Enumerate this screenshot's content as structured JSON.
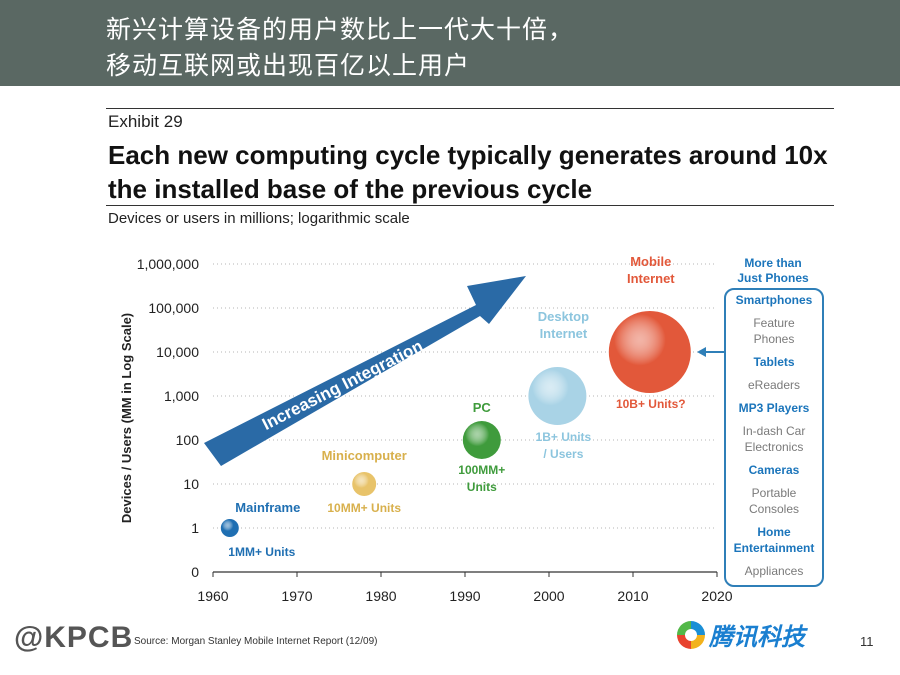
{
  "header": {
    "line1": "新兴计算设备的用户数比上一代大十倍，",
    "line2": "移动互联网或出现百亿以上用户"
  },
  "exhibit": {
    "label": "Exhibit 29",
    "title": "Each new computing cycle typically generates around 10x the installed base of the previous cycle",
    "subtitle": "Devices or users in millions; logarithmic scale"
  },
  "colors": {
    "header_bg": "#5a6863",
    "arrow": "#2a6aa6",
    "mainframe": "#1f6fb2",
    "minicomputer": "#e8c36a",
    "pc": "#3f9b3c",
    "desktop": "#a9d3e6",
    "mobile": "#e2583a",
    "side_panel": "#2f7fb8",
    "side_dark": "#1b75bb",
    "side_light": "#7a7a7a"
  },
  "chart_data": {
    "type": "scatter",
    "title": "Each new computing cycle typically generates around 10x the installed base of the previous cycle",
    "subtitle": "Devices or users in millions; logarithmic scale",
    "xlabel": "",
    "ylabel": "Devices / Users (MM in Log Scale)",
    "yscale": "log",
    "xlim": [
      1960,
      2020
    ],
    "x_ticks": [
      "1960",
      "1970",
      "1980",
      "1990",
      "2000",
      "2010",
      "2020"
    ],
    "y_ticks": [
      "0",
      "1",
      "10",
      "100",
      "1,000",
      "10,000",
      "100,000",
      "1,000,000"
    ],
    "grid": "horizontal dotted",
    "arrow_label": "Increasing Integration",
    "points": [
      {
        "name": "Mainframe",
        "x": 1962,
        "y": 1,
        "units": "1MM+ Units",
        "size": "smallest"
      },
      {
        "name": "Minicomputer",
        "x": 1978,
        "y": 10,
        "units": "10MM+ Units",
        "size": "small"
      },
      {
        "name": "PC",
        "x": 1992,
        "y": 100,
        "units": "100MM+ Units",
        "size": "medium"
      },
      {
        "name": "Desktop Internet",
        "x": 2001,
        "y": 1000,
        "units": "1B+ Units / Users",
        "size": "large"
      },
      {
        "name": "Mobile Internet",
        "x": 2012,
        "y": 10000,
        "units": "10B+ Units?",
        "size": "largest"
      }
    ],
    "side_panel": {
      "title": "More than Just Phones",
      "items": [
        {
          "label": "Smartphones",
          "style": "dark"
        },
        {
          "label": "Feature Phones",
          "style": "light"
        },
        {
          "label": "Tablets",
          "style": "dark"
        },
        {
          "label": "eReaders",
          "style": "light"
        },
        {
          "label": "MP3 Players",
          "style": "dark"
        },
        {
          "label": "In-dash Car Electronics",
          "style": "light"
        },
        {
          "label": "Cameras",
          "style": "dark"
        },
        {
          "label": "Portable Consoles",
          "style": "light"
        },
        {
          "label": "Home Entertainment",
          "style": "dark"
        },
        {
          "label": "Appliances",
          "style": "light"
        }
      ]
    }
  },
  "footer": {
    "logo": "@KPCB",
    "source": "Source: Morgan Stanley Mobile Internet Report (12/09)",
    "brand": "腾讯科技",
    "page_number": "11"
  }
}
